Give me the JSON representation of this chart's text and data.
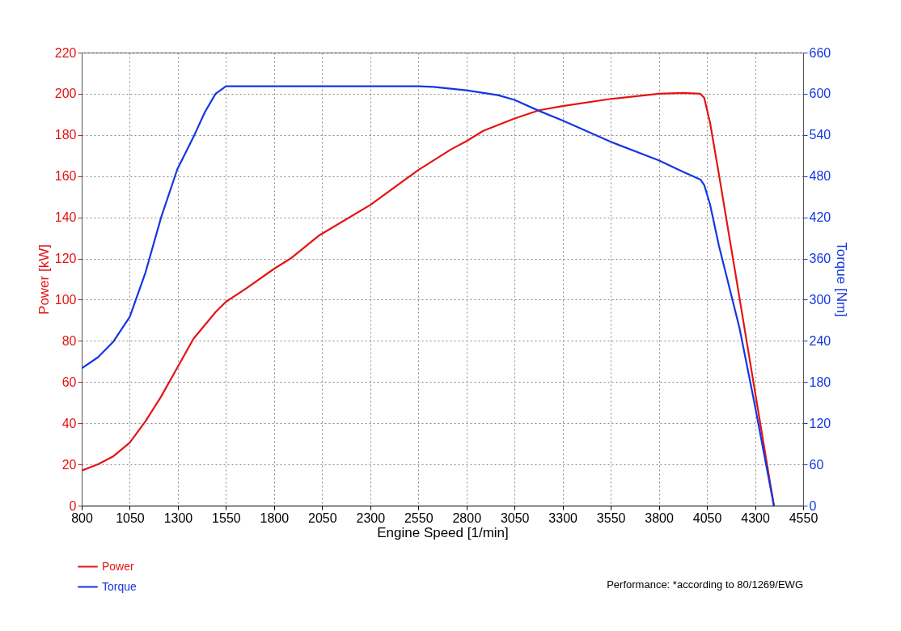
{
  "chart_data": {
    "type": "line",
    "xlabel": "Engine Speed [1/min]",
    "ylabel": "Power [kW]",
    "y2label": "Torque [Nm]",
    "annotations": [
      "Performance: *according to 80/1269/EWG"
    ],
    "xlim": [
      800,
      4550
    ],
    "xticks": [
      800,
      1050,
      1300,
      1550,
      1800,
      2050,
      2300,
      2550,
      2800,
      3050,
      3300,
      3550,
      3800,
      4050,
      4300,
      4550
    ],
    "ylim": [
      0,
      220
    ],
    "yticks": [
      0,
      20,
      40,
      60,
      80,
      100,
      120,
      140,
      160,
      180,
      200,
      220
    ],
    "y2lim": [
      0,
      660
    ],
    "y2ticks": [
      0,
      60,
      120,
      180,
      240,
      300,
      360,
      420,
      480,
      540,
      600,
      660
    ],
    "grid": true,
    "legend": "bottom left",
    "line_style": "solid",
    "series": [
      {
        "name": "Power",
        "color": "#e31414",
        "x": [
          800,
          884,
          965,
          1050,
          1132,
          1213,
          1297,
          1381,
          1496,
          1550,
          1656,
          1800,
          1886,
          2031,
          2300,
          2550,
          2720,
          2800,
          2887,
          3050,
          3178,
          3300,
          3550,
          3800,
          3929,
          4016,
          4036,
          4066,
          4112,
          4219,
          4295,
          4398
        ],
        "values": [
          17,
          20,
          24,
          30.6,
          41,
          53,
          67,
          81,
          94,
          99,
          105.5,
          115,
          120,
          131,
          146,
          163,
          173,
          177,
          182,
          188,
          192,
          194,
          197.5,
          200,
          200.4,
          200,
          198,
          186,
          161,
          101,
          58,
          0
        ]
      },
      {
        "name": "Torque",
        "color": "#1437e0",
        "axis": "y2",
        "x": [
          800,
          884,
          965,
          1050,
          1132,
          1213,
          1297,
          1381,
          1440,
          1496,
          1550,
          1800,
          2050,
          2300,
          2550,
          2626,
          2800,
          2964,
          3050,
          3178,
          3300,
          3550,
          3800,
          3913,
          4016,
          4036,
          4066,
          4112,
          4219,
          4295,
          4398
        ],
        "values": [
          200,
          216,
          239,
          275,
          340,
          420,
          490,
          537,
          573,
          600,
          611,
          611,
          611,
          611,
          611,
          610,
          605,
          598,
          591,
          575,
          561,
          530,
          503,
          488,
          475,
          467,
          439,
          379,
          259,
          152,
          0
        ]
      }
    ]
  }
}
